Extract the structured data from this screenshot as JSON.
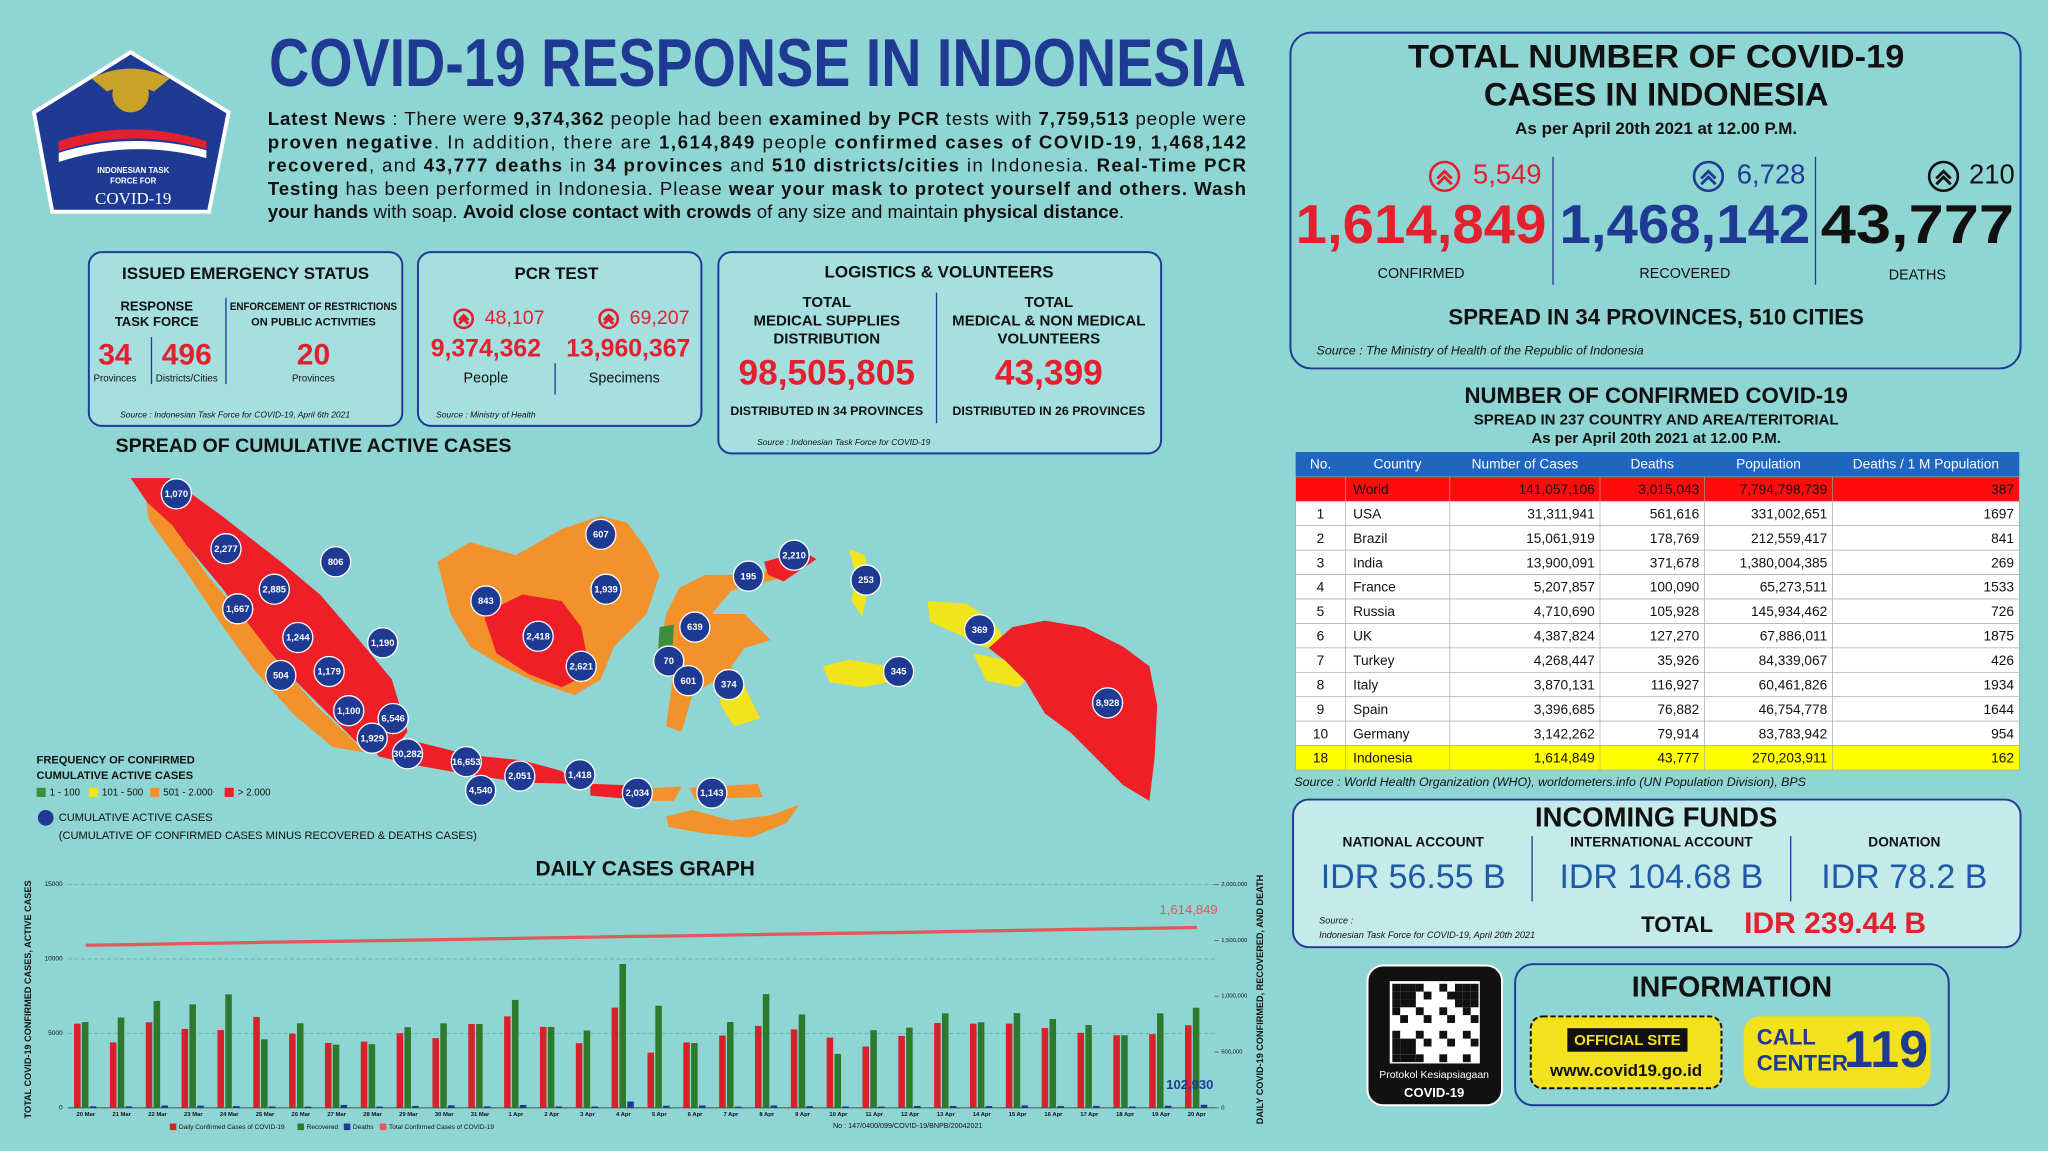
{
  "header": {
    "logo_lines": [
      "INDONESIAN TASK",
      "FORCE FOR"
    ],
    "logo_title": "COVID-19",
    "title": "COVID-19 RESPONSE IN INDONESIA",
    "news": [
      [
        {
          "text": "Latest News",
          "bold": true
        },
        {
          "text": " : There were ",
          "bold": false
        },
        {
          "text": "9,374,362",
          "bold": true
        },
        {
          "text": " people had been ",
          "bold": false
        },
        {
          "text": "examined by PCR",
          "bold": true
        },
        {
          "text": " tests with ",
          "bold": false
        },
        {
          "text": "7,759,513",
          "bold": true
        },
        {
          "text": " people were",
          "bold": false
        }
      ],
      [
        {
          "text": "proven negative",
          "bold": true
        },
        {
          "text": ". In addition, there are ",
          "bold": false
        },
        {
          "text": "1,614,849",
          "bold": true
        },
        {
          "text": " people ",
          "bold": false
        },
        {
          "text": "confirmed cases of COVID-19",
          "bold": true
        },
        {
          "text": ", ",
          "bold": false
        },
        {
          "text": "1,468,142",
          "bold": true
        }
      ],
      [
        {
          "text": "recovered",
          "bold": true
        },
        {
          "text": ", and ",
          "bold": false
        },
        {
          "text": "43,777 deaths",
          "bold": true
        },
        {
          "text": " in ",
          "bold": false
        },
        {
          "text": "34 provinces",
          "bold": true
        },
        {
          "text": " and ",
          "bold": false
        },
        {
          "text": "510 districts/cities",
          "bold": true
        },
        {
          "text": " in Indonesia. ",
          "bold": false
        },
        {
          "text": "Real-Time PCR",
          "bold": true
        }
      ],
      [
        {
          "text": "Testing",
          "bold": true
        },
        {
          "text": " has been performed in Indonesia. Please ",
          "bold": false
        },
        {
          "text": "wear your mask to protect yourself and others. Wash",
          "bold": true
        }
      ],
      [
        {
          "text": "your hands",
          "bold": true
        },
        {
          "text": " with soap. ",
          "bold": false
        },
        {
          "text": "Avoid close contact with crowds",
          "bold": true
        },
        {
          "text": " of any size and maintain ",
          "bold": false
        },
        {
          "text": "physical distance",
          "bold": true
        },
        {
          "text": ".",
          "bold": false
        }
      ]
    ]
  },
  "emergency": {
    "title": "ISSUED EMERGENCY STATUS",
    "task_force_label": [
      "RESPONSE",
      "TASK FORCE"
    ],
    "restrictions_label": [
      "ENFORCEMENT OF RESTRICTIONS",
      "ON PUBLIC ACTIVITIES"
    ],
    "provinces": "34",
    "provinces_label": "Provinces",
    "districts": "496",
    "districts_label": "Districts/Cities",
    "restriction_provinces": "20",
    "restriction_label": "Provinces",
    "source": "Source : Indonesian Task Force for COVID-19, April 6th 2021"
  },
  "pcr": {
    "title": "PCR TEST",
    "people_new": "48,107",
    "specimens_new": "69,207",
    "people": "9,374,362",
    "specimens": "13,960,367",
    "people_label": "People",
    "specimens_label": "Specimens",
    "source": "Source : Ministry of Health"
  },
  "logistics": {
    "title": "LOGISTICS & VOLUNTEERS",
    "supplies_label": [
      "TOTAL",
      "MEDICAL SUPPLIES",
      "DISTRIBUTION"
    ],
    "volunteers_label": [
      "TOTAL",
      "MEDICAL & NON MEDICAL",
      "VOLUNTEERS"
    ],
    "supplies": "98,505,805",
    "volunteers": "43,399",
    "supplies_note": "DISTRIBUTED IN 34 PROVINCES",
    "volunteers_note": "DISTRIBUTED IN 26 PROVINCES",
    "source": "Source : Indonesian Task Force for COVID-19"
  },
  "totals": {
    "title": [
      "TOTAL NUMBER OF COVID-19",
      "CASES IN INDONESIA"
    ],
    "as_of": "As per April 20th 2021 at 12.00 P.M.",
    "confirmed_new": "5,549",
    "recovered_new": "6,728",
    "deaths_new": "210",
    "confirmed": "1,614,849",
    "recovered": "1,468,142",
    "deaths": "43,777",
    "confirmed_label": "CONFIRMED",
    "recovered_label": "RECOVERED",
    "deaths_label": "DEATHS",
    "spread": "SPREAD IN 34 PROVINCES, 510 CITIES",
    "source": "Source : The Ministry of Health of the Republic of Indonesia"
  },
  "world_table": {
    "title": "NUMBER OF CONFIRMED COVID-19",
    "subtitle": "SPREAD IN 237 COUNTRY AND AREA/TERITORIAL",
    "as_of": "As per April 20th 2021 at 12.00 P.M.",
    "columns": [
      "No.",
      "Country",
      "Number of Cases",
      "Deaths",
      "Population",
      "Deaths / 1 M Population"
    ],
    "rows": [
      {
        "cells": [
          "World",
          "141,057,106",
          "3,015,043",
          "7,794,798,739",
          "387"
        ],
        "fill": "#ff0d0d"
      },
      {
        "no": "1",
        "cells": [
          "USA",
          "31,311,941",
          "561,616",
          "331,002,651",
          "1697"
        ]
      },
      {
        "no": "2",
        "cells": [
          "Brazil",
          "15,061,919",
          "178,769",
          "212,559,417",
          "841"
        ]
      },
      {
        "no": "3",
        "cells": [
          "India",
          "13,900,091",
          "371,678",
          "1,380,004,385",
          "269"
        ]
      },
      {
        "no": "4",
        "cells": [
          "France",
          "5,207,857",
          "100,090",
          "65,273,511",
          "1533"
        ]
      },
      {
        "no": "5",
        "cells": [
          "Russia",
          "4,710,690",
          "105,928",
          "145,934,462",
          "726"
        ]
      },
      {
        "no": "6",
        "cells": [
          "UK",
          "4,387,824",
          "127,270",
          "67,886,011",
          "1875"
        ]
      },
      {
        "no": "7",
        "cells": [
          "Turkey",
          "4,268,447",
          "35,926",
          "84,339,067",
          "426"
        ]
      },
      {
        "no": "8",
        "cells": [
          "Italy",
          "3,870,131",
          "116,927",
          "60,461,826",
          "1934"
        ]
      },
      {
        "no": "9",
        "cells": [
          "Spain",
          "3,396,685",
          "76,882",
          "46,754,778",
          "1644"
        ]
      },
      {
        "no": "10",
        "cells": [
          "Germany",
          "3,142,262",
          "79,914",
          "83,783,942",
          "954"
        ]
      },
      {
        "no": "18",
        "cells": [
          "Indonesia",
          "1,614,849",
          "43,777",
          "270,203,911",
          "162"
        ],
        "fill": "#ffff00"
      }
    ],
    "source": "Source : World Health Organization (WHO), worldometers.info (UN Population Division), BPS"
  },
  "funds": {
    "title": "INCOMING FUNDS",
    "accounts": [
      {
        "label": "NATIONAL ACCOUNT",
        "amount": "IDR 56.55 B"
      },
      {
        "label": "INTERNATIONAL ACCOUNT",
        "amount": "IDR 104.68 B"
      },
      {
        "label": "DONATION",
        "amount": "IDR 78.2 B"
      }
    ],
    "source": [
      "Source :",
      "Indonesian Task Force for COVID-19, April 20th 2021"
    ],
    "total_label": "TOTAL",
    "total": "IDR 239.44 B"
  },
  "info": {
    "qr_caption": [
      "Protokol Kesiapsiagaan",
      "COVID-19"
    ],
    "title": "INFORMATION",
    "site_label": "OFFICIAL SITE",
    "site": "www.covid19.go.id",
    "call_label": [
      "CALL",
      "CENTER"
    ],
    "call_number": "119"
  },
  "map": {
    "title": "SPREAD OF CUMULATIVE ACTIVE CASES",
    "legend_title": [
      "FREQUENCY OF CONFIRMED",
      "CUMULATIVE ACTIVE CASES"
    ],
    "legend": [
      {
        "label": "1 - 100",
        "color": "#3c8d3c"
      },
      {
        "label": "101 - 500",
        "color": "#f1e41b"
      },
      {
        "label": "501 - 2.000",
        "color": "#f3922a"
      },
      {
        "label": "> 2.000",
        "color": "#ee1f26"
      }
    ],
    "bubble_legend": "CUMULATIVE ACTIVE CASES",
    "bubble_note": "(CUMULATIVE OF CONFIRMED CASES MINUS RECOVERED & DEATHS CASES)",
    "bubbles": [
      "1,070",
      "2,277",
      "806",
      "2,885",
      "1,667",
      "843",
      "2,418",
      "1,939",
      "607",
      "1,244",
      "1,190",
      "2,621",
      "504",
      "1,179",
      "1,100",
      "6,546",
      "1,929",
      "30,282",
      "16,653",
      "4,540",
      "2,051",
      "1,418",
      "2,034",
      "1,143",
      "195",
      "2,210",
      "253",
      "639",
      "70",
      "601",
      "374",
      "345",
      "369",
      "8,928"
    ]
  },
  "chart_data": {
    "type": "bar",
    "title": "DAILY CASES GRAPH",
    "y_label": "TOTAL COVID-19 CONFIRMED CASES, ACTIVE CASES",
    "y2_label": "DAILY COVID-19 CONFIRMED, RECOVERED, AND DEATH",
    "categories": [
      "20 Mar",
      "21 Mar",
      "22 Mar",
      "23 Mar",
      "24 Mar",
      "25 Mar",
      "26 Mar",
      "27 Mar",
      "28 Mar",
      "29 Mar",
      "30 Mar",
      "31 Mar",
      "1 Apr",
      "2 Apr",
      "3 Apr",
      "4 Apr",
      "5 Apr",
      "6 Apr",
      "7 Apr",
      "8 Apr",
      "9 Apr",
      "10 Apr",
      "11 Apr",
      "12 Apr",
      "13 Apr",
      "14 Apr",
      "15 Apr",
      "16 Apr",
      "17 Apr",
      "18 Apr",
      "19 Apr",
      "20 Apr"
    ],
    "series": [
      {
        "name": "Daily Confirmed Cases of COVID-19",
        "color": "#d7212b",
        "values": [
          5656,
          4396,
          5744,
          5297,
          5227,
          6107,
          4982,
          4356,
          4452,
          5008,
          4683,
          5635,
          6142,
          5439,
          4345,
          6731,
          3712,
          4396,
          4860,
          5504,
          5265,
          4723,
          4127,
          4829,
          5702,
          5656,
          5656,
          5362,
          5041,
          4873,
          4952,
          5549
        ]
      },
      {
        "name": "Recovered",
        "color": "#2d7a2d",
        "values": [
          5760,
          6065,
          7177,
          6954,
          7622,
          4606,
          5679,
          4243,
          4279,
          5418,
          5677,
          5635,
          7248,
          5439,
          5197,
          9663,
          6861,
          4356,
          5769,
          7640,
          6277,
          3629,
          5219,
          5389,
          6349,
          5747,
          6362,
          5970,
          5563,
          4873,
          6349,
          6728
        ]
      },
      {
        "name": "Deaths",
        "color": "#1f3a93",
        "values": [
          106,
          103,
          161,
          154,
          118,
          96,
          85,
          198,
          89,
          132,
          173,
          104,
          196,
          97,
          91,
          427,
          146,
          162,
          87,
          163,
          121,
          95,
          87,
          126,
          126,
          124,
          167,
          123,
          132,
          96,
          143,
          210
        ]
      },
      {
        "name": "Total Confirmed Cases of COVID-19",
        "color": "#e05a5a",
        "type": "line",
        "axis": "y2",
        "end_label": "1,614,849",
        "values": [
          1455788,
          1460184,
          1465928,
          1471225,
          1476452,
          1482559,
          1487541,
          1491897,
          1496349,
          1501357,
          1506040,
          1511670,
          1517854,
          1523179,
          1527524,
          1534255,
          1537967,
          1542516,
          1547376,
          1552880,
          1558145,
          1562868,
          1566995,
          1571824,
          1577526,
          1583182,
          1589359,
          1594722,
          1599763,
          1604348,
          1609300,
          1614849
        ]
      }
    ],
    "annotations": [
      "102,930"
    ],
    "ylim": [
      0,
      15000
    ],
    "yticks": [
      0,
      5000,
      10000,
      15000
    ],
    "y2lim": [
      0,
      2000000
    ],
    "y2ticks": [
      0,
      {
        "value": 500000,
        "label": "500,000"
      },
      {
        "value": 1000000,
        "label": "1,000,000"
      },
      {
        "value": 1500000,
        "label": "1,500,000"
      },
      {
        "value": 2000000,
        "label": "2,000,000"
      }
    ],
    "grid": true
  },
  "footer_no": "No : 147/0400/099/COVID-19/BNPB/20042021"
}
